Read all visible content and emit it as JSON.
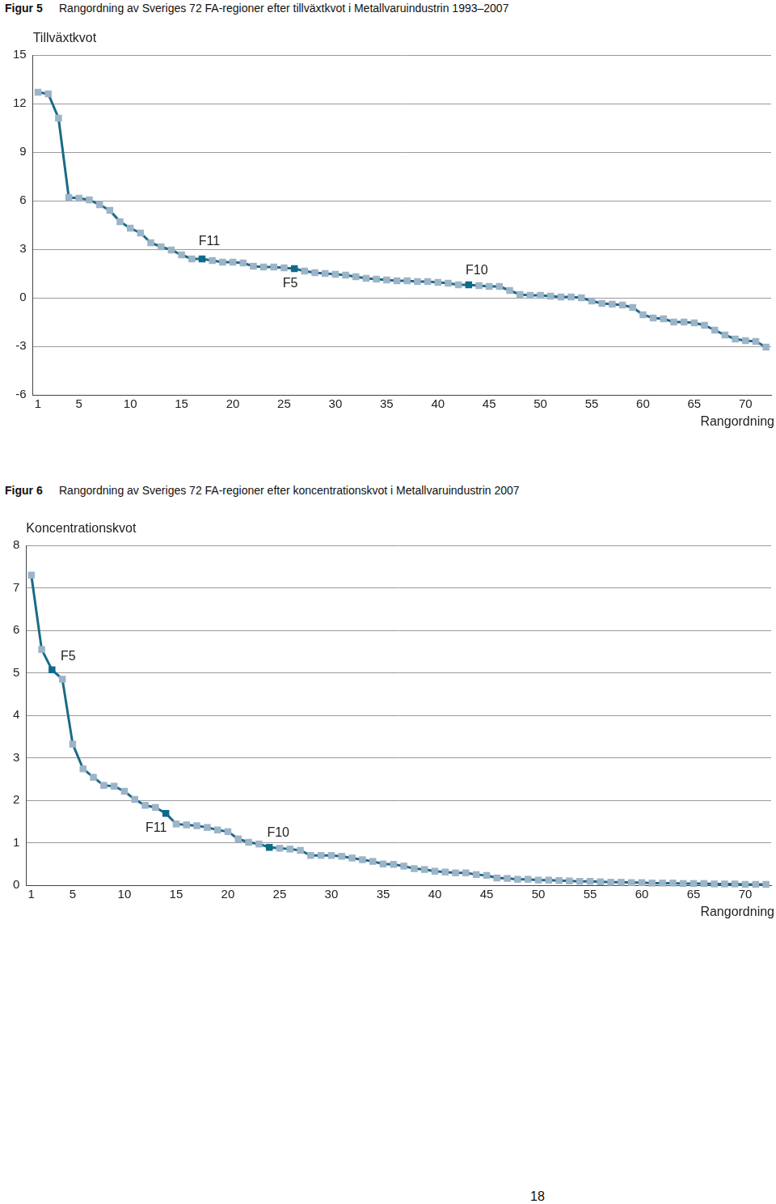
{
  "chart_data": [
    {
      "type": "line",
      "figure_label": "Figur 5",
      "title": "Rangordning av Sveriges 72 FA-regioner efter tillväxtkvot i Metallvaruindustrin 1993–2007",
      "ylabel": "Tillväxtkvot",
      "xlabel": "Rangordning",
      "x": [
        1,
        2,
        3,
        4,
        5,
        6,
        7,
        8,
        9,
        10,
        11,
        12,
        13,
        14,
        15,
        16,
        17,
        18,
        19,
        20,
        21,
        22,
        23,
        24,
        25,
        26,
        27,
        28,
        29,
        30,
        31,
        32,
        33,
        34,
        35,
        36,
        37,
        38,
        39,
        40,
        41,
        42,
        43,
        44,
        45,
        46,
        47,
        48,
        49,
        50,
        51,
        52,
        53,
        54,
        55,
        56,
        57,
        58,
        59,
        60,
        61,
        62,
        63,
        64,
        65,
        66,
        67,
        68,
        69,
        70,
        71,
        72
      ],
      "values": [
        12.7,
        12.6,
        11.1,
        6.2,
        6.15,
        6.05,
        5.75,
        5.4,
        4.7,
        4.3,
        4.0,
        3.4,
        3.15,
        2.95,
        2.65,
        2.4,
        2.4,
        2.3,
        2.2,
        2.2,
        2.15,
        1.95,
        1.9,
        1.9,
        1.85,
        1.8,
        1.65,
        1.55,
        1.5,
        1.45,
        1.4,
        1.3,
        1.2,
        1.15,
        1.1,
        1.05,
        1.05,
        1.0,
        1.0,
        0.95,
        0.9,
        0.8,
        0.8,
        0.75,
        0.7,
        0.7,
        0.45,
        0.2,
        0.15,
        0.15,
        0.1,
        0.05,
        0.05,
        0.0,
        -0.2,
        -0.35,
        -0.4,
        -0.45,
        -0.6,
        -1.05,
        -1.25,
        -1.3,
        -1.5,
        -1.5,
        -1.55,
        -1.7,
        -2.0,
        -2.3,
        -2.55,
        -2.65,
        -2.7,
        -3.05
      ],
      "color": "#1a6b87",
      "colors": [
        "#9db3c8",
        "#9db3c8",
        "#9db3c8",
        "#9db3c8",
        "#9db3c8",
        "#9db3c8",
        "#9db3c8",
        "#9db3c8",
        "#9db3c8",
        "#9db3c8",
        "#9db3c8",
        "#9db3c8",
        "#9db3c8",
        "#9db3c8",
        "#9db3c8",
        "#9db3c8",
        "#0e6b8a",
        "#9db3c8",
        "#9db3c8",
        "#9db3c8",
        "#9db3c8",
        "#9db3c8",
        "#9db3c8",
        "#9db3c8",
        "#9db3c8",
        "#0e6b8a",
        "#9db3c8",
        "#9db3c8",
        "#9db3c8",
        "#9db3c8",
        "#9db3c8",
        "#9db3c8",
        "#9db3c8",
        "#9db3c8",
        "#9db3c8",
        "#9db3c8",
        "#9db3c8",
        "#9db3c8",
        "#9db3c8",
        "#9db3c8",
        "#9db3c8",
        "#9db3c8",
        "#0e6b8a",
        "#9db3c8",
        "#9db3c8",
        "#9db3c8",
        "#9db3c8",
        "#9db3c8",
        "#9db3c8",
        "#9db3c8",
        "#9db3c8",
        "#9db3c8",
        "#9db3c8",
        "#9db3c8",
        "#9db3c8",
        "#9db3c8",
        "#9db3c8",
        "#9db3c8",
        "#9db3c8",
        "#9db3c8",
        "#9db3c8",
        "#9db3c8",
        "#9db3c8",
        "#9db3c8",
        "#9db3c8",
        "#9db3c8",
        "#9db3c8",
        "#9db3c8",
        "#9db3c8",
        "#9db3c8",
        "#9db3c8",
        "#9db3c8"
      ],
      "marker": "square",
      "annotations": [
        {
          "text": "F11",
          "x": 17
        },
        {
          "text": "F5",
          "x": 26
        },
        {
          "text": "F10",
          "x": 43
        }
      ],
      "xlim": [
        0.5,
        72.5
      ],
      "xticks": [
        1,
        5,
        10,
        15,
        20,
        25,
        30,
        35,
        40,
        45,
        50,
        55,
        60,
        65,
        70
      ],
      "ylim": [
        -6,
        15
      ],
      "yticks": [
        -6,
        -3,
        0,
        3,
        6,
        9,
        12,
        15
      ],
      "grid": true
    },
    {
      "type": "line",
      "figure_label": "Figur 6",
      "title": "Rangordning av Sveriges 72 FA-regioner efter koncentrationskvot i Metallvaruindustrin 2007",
      "ylabel": "Koncentrationskvot",
      "xlabel": "Rangordning",
      "x": [
        1,
        2,
        3,
        4,
        5,
        6,
        7,
        8,
        9,
        10,
        11,
        12,
        13,
        14,
        15,
        16,
        17,
        18,
        19,
        20,
        21,
        22,
        23,
        24,
        25,
        26,
        27,
        28,
        29,
        30,
        31,
        32,
        33,
        34,
        35,
        36,
        37,
        38,
        39,
        40,
        41,
        42,
        43,
        44,
        45,
        46,
        47,
        48,
        49,
        50,
        51,
        52,
        53,
        54,
        55,
        56,
        57,
        58,
        59,
        60,
        61,
        62,
        63,
        64,
        65,
        66,
        67,
        68,
        69,
        70,
        71,
        72
      ],
      "values": [
        7.3,
        5.55,
        5.07,
        4.85,
        3.32,
        2.74,
        2.54,
        2.35,
        2.33,
        2.21,
        2.02,
        1.88,
        1.83,
        1.69,
        1.44,
        1.42,
        1.4,
        1.36,
        1.3,
        1.26,
        1.09,
        1.01,
        0.97,
        0.89,
        0.87,
        0.85,
        0.82,
        0.7,
        0.7,
        0.7,
        0.68,
        0.64,
        0.6,
        0.56,
        0.5,
        0.49,
        0.45,
        0.39,
        0.37,
        0.33,
        0.31,
        0.29,
        0.29,
        0.25,
        0.23,
        0.17,
        0.16,
        0.14,
        0.14,
        0.12,
        0.12,
        0.11,
        0.1,
        0.09,
        0.09,
        0.08,
        0.07,
        0.07,
        0.06,
        0.06,
        0.05,
        0.05,
        0.05,
        0.04,
        0.04,
        0.04,
        0.03,
        0.03,
        0.03,
        0.02,
        0.02,
        0.02
      ],
      "color": "#1a6b87",
      "colors": [
        "#9db3c8",
        "#9db3c8",
        "#0e6b8a",
        "#9db3c8",
        "#9db3c8",
        "#9db3c8",
        "#9db3c8",
        "#9db3c8",
        "#9db3c8",
        "#9db3c8",
        "#9db3c8",
        "#9db3c8",
        "#9db3c8",
        "#0e6b8a",
        "#9db3c8",
        "#9db3c8",
        "#9db3c8",
        "#9db3c8",
        "#9db3c8",
        "#9db3c8",
        "#9db3c8",
        "#9db3c8",
        "#9db3c8",
        "#0e6b8a",
        "#9db3c8",
        "#9db3c8",
        "#9db3c8",
        "#9db3c8",
        "#9db3c8",
        "#9db3c8",
        "#9db3c8",
        "#9db3c8",
        "#9db3c8",
        "#9db3c8",
        "#9db3c8",
        "#9db3c8",
        "#9db3c8",
        "#9db3c8",
        "#9db3c8",
        "#9db3c8",
        "#9db3c8",
        "#9db3c8",
        "#9db3c8",
        "#9db3c8",
        "#9db3c8",
        "#9db3c8",
        "#9db3c8",
        "#9db3c8",
        "#9db3c8",
        "#9db3c8",
        "#9db3c8",
        "#9db3c8",
        "#9db3c8",
        "#9db3c8",
        "#9db3c8",
        "#9db3c8",
        "#9db3c8",
        "#9db3c8",
        "#9db3c8",
        "#9db3c8",
        "#9db3c8",
        "#9db3c8",
        "#9db3c8",
        "#9db3c8",
        "#9db3c8",
        "#9db3c8",
        "#9db3c8",
        "#9db3c8",
        "#9db3c8",
        "#9db3c8",
        "#9db3c8",
        "#9db3c8"
      ],
      "marker": "square",
      "annotations": [
        {
          "text": "F5",
          "x": 3
        },
        {
          "text": "F11",
          "x": 14
        },
        {
          "text": "F10",
          "x": 24
        }
      ],
      "xlim": [
        0.5,
        72.5
      ],
      "xticks": [
        1,
        5,
        10,
        15,
        20,
        25,
        30,
        35,
        40,
        45,
        50,
        55,
        60,
        65,
        70
      ],
      "ylim": [
        0,
        8
      ],
      "yticks": [
        0,
        1,
        2,
        3,
        4,
        5,
        6,
        7,
        8
      ],
      "grid": true
    }
  ],
  "page_number": 18
}
